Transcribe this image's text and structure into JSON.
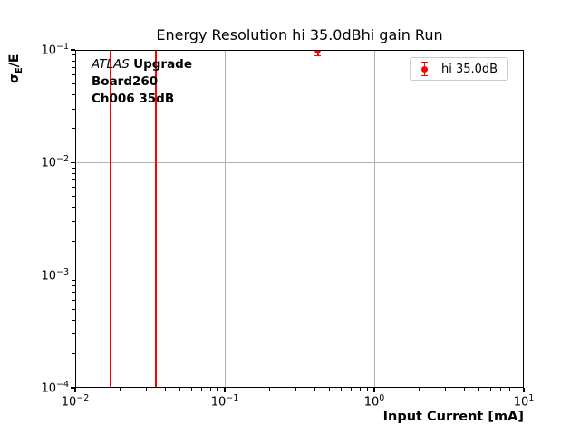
{
  "figure": {
    "background": "#ffffff",
    "accent_red": "#ff0000",
    "grid_color": "#b0b0b0",
    "legend_edge_color": "#cccccc"
  },
  "chart_data": {
    "type": "scatter",
    "title": "Energy Resolution hi 35.0dBhi gain Run",
    "xlabel": "Input Current [mA]",
    "ylabel": "σE/E",
    "ylabel_parts": {
      "symbol": "σ",
      "subscript": "E",
      "suffix": "/E"
    },
    "xscale": "log",
    "yscale": "log",
    "xlim": [
      0.01,
      10
    ],
    "ylim": [
      0.0001,
      0.1
    ],
    "x_tick_exponents": [
      -2,
      -1,
      0,
      1
    ],
    "y_tick_exponents": [
      -1,
      -2,
      -3,
      -4
    ],
    "grid": true,
    "grid_on_major_only": true,
    "legend_position": "upper right",
    "series": [
      {
        "name": "hi 35.0dB",
        "color": "#ff0000",
        "marker": "circle-with-errorbar",
        "points": [
          {
            "x": 0.42,
            "y": 0.1,
            "yerr": 0.011
          }
        ]
      }
    ],
    "vlines": [
      {
        "x": 0.0172,
        "color": "#ff0000"
      },
      {
        "x": 0.0348,
        "color": "#ff0000"
      }
    ],
    "annotation": {
      "brand_italic": "ATLAS",
      "brand_bold": "Upgrade",
      "line2": "Board260",
      "line3": "Ch006 35dB"
    }
  }
}
